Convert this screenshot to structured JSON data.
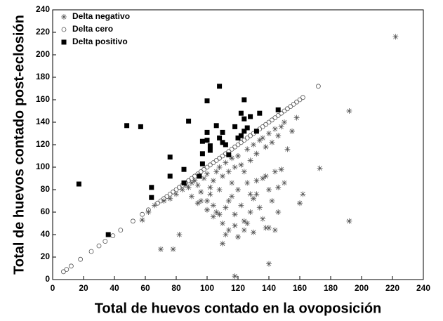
{
  "chart_data": {
    "type": "scatter",
    "xlabel": "Total de huevos contado en la ovoposición",
    "ylabel": "Total de huevos contado post-eclosión",
    "xlim": [
      0,
      240
    ],
    "ylim": [
      0,
      240
    ],
    "xticks": [
      0,
      20,
      40,
      60,
      80,
      100,
      120,
      140,
      160,
      180,
      200,
      220,
      240
    ],
    "yticks": [
      0,
      20,
      40,
      60,
      80,
      100,
      120,
      140,
      160,
      180,
      200,
      220,
      240
    ],
    "legend": "upper left",
    "series": [
      {
        "name": "Delta negativo",
        "color": "#555555",
        "marker": "star",
        "x": [
          222,
          192,
          192,
          173,
          162,
          160,
          118,
          140,
          70,
          78,
          82,
          58,
          62,
          66,
          72,
          76,
          80,
          84,
          86,
          88,
          90,
          92,
          94,
          96,
          98,
          100,
          100,
          102,
          104,
          104,
          106,
          106,
          108,
          108,
          110,
          110,
          112,
          112,
          114,
          114,
          116,
          116,
          118,
          118,
          120,
          120,
          122,
          122,
          124,
          124,
          126,
          126,
          128,
          128,
          130,
          130,
          132,
          132,
          134,
          134,
          136,
          136,
          138,
          138,
          140,
          140,
          142,
          142,
          144,
          144,
          146,
          146,
          148,
          148,
          150,
          150,
          152,
          155,
          158,
          110,
          112,
          114,
          120,
          126,
          130,
          136,
          140,
          96,
          100,
          104,
          108,
          118,
          124,
          132,
          144,
          146,
          90,
          94,
          102,
          116,
          128,
          138
        ],
        "y": [
          216,
          150,
          52,
          99,
          76,
          68,
          3,
          14,
          27,
          27,
          40,
          53,
          60,
          66,
          70,
          72,
          76,
          80,
          84,
          82,
          86,
          88,
          84,
          78,
          90,
          70,
          94,
          76,
          88,
          56,
          96,
          60,
          80,
          100,
          50,
          92,
          64,
          104,
          70,
          96,
          74,
          108,
          58,
          100,
          80,
          110,
          66,
          102,
          44,
          96,
          86,
          116,
          60,
          106,
          72,
          120,
          88,
          112,
          64,
          124,
          90,
          126,
          46,
          118,
          80,
          130,
          70,
          122,
          96,
          134,
          60,
          128,
          98,
          136,
          86,
          140,
          116,
          132,
          144,
          32,
          40,
          44,
          38,
          50,
          42,
          54,
          46,
          70,
          62,
          66,
          58,
          48,
          52,
          76,
          44,
          82,
          74,
          68,
          82,
          86,
          76,
          92
        ]
      },
      {
        "name": "Delta cero",
        "color": "#555555",
        "marker": "circle",
        "x": [
          7,
          9,
          12,
          18,
          25,
          30,
          34,
          39,
          44,
          52,
          58,
          62,
          68,
          70,
          72,
          74,
          76,
          78,
          80,
          82,
          84,
          86,
          88,
          90,
          92,
          94,
          96,
          98,
          100,
          102,
          104,
          106,
          108,
          110,
          112,
          114,
          116,
          118,
          120,
          122,
          124,
          126,
          128,
          130,
          132,
          134,
          136,
          138,
          140,
          142,
          144,
          146,
          148,
          150,
          152,
          154,
          156,
          158,
          160,
          162,
          172
        ],
        "y": [
          7,
          9,
          12,
          18,
          25,
          30,
          34,
          39,
          44,
          52,
          58,
          62,
          68,
          70,
          72,
          74,
          76,
          78,
          80,
          82,
          84,
          86,
          88,
          90,
          92,
          94,
          96,
          98,
          100,
          102,
          104,
          106,
          108,
          110,
          112,
          114,
          116,
          118,
          120,
          122,
          124,
          126,
          128,
          130,
          132,
          134,
          136,
          138,
          140,
          142,
          144,
          146,
          148,
          150,
          152,
          154,
          156,
          158,
          160,
          162,
          172
        ]
      },
      {
        "name": "Delta positivo",
        "color": "#000000",
        "marker": "square",
        "x": [
          17,
          36,
          48,
          57,
          64,
          64,
          76,
          76,
          85,
          85,
          88,
          95,
          97,
          97,
          97,
          100,
          100,
          100,
          102,
          102,
          106,
          108,
          108,
          110,
          110,
          112,
          114,
          118,
          120,
          122,
          122,
          124,
          124,
          124,
          126,
          128,
          132,
          134,
          146
        ],
        "y": [
          85,
          40,
          137,
          136,
          82,
          73,
          109,
          92,
          98,
          86,
          141,
          92,
          103,
          112,
          123,
          159,
          131,
          124,
          119,
          115,
          137,
          172,
          126,
          131,
          122,
          120,
          111,
          136,
          126,
          148,
          128,
          160,
          143,
          132,
          135,
          145,
          132,
          148,
          151
        ]
      }
    ]
  }
}
